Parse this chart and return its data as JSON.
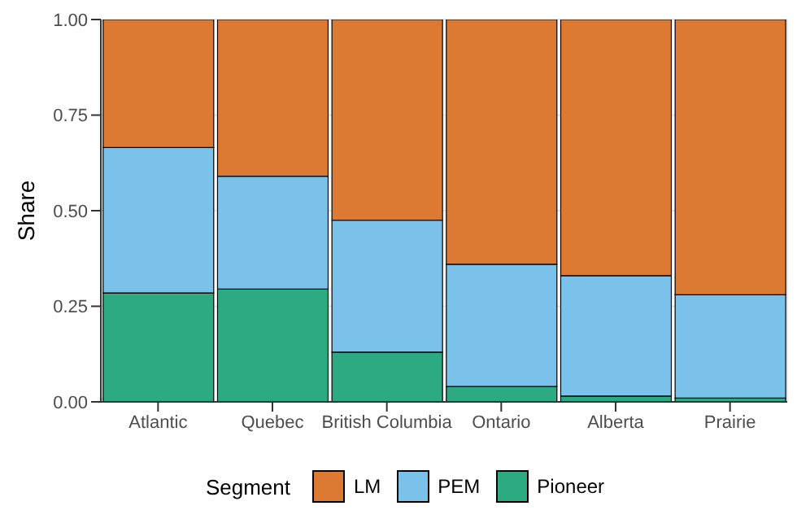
{
  "chart_data": {
    "type": "bar",
    "stacked": true,
    "ylabel": "Share",
    "legend_title": "Segment",
    "legend": "bottom",
    "grid": true,
    "categories": [
      "Atlantic",
      "Quebec",
      "British Columbia",
      "Ontario",
      "Alberta",
      "Prairie"
    ],
    "ylim": [
      0,
      1
    ],
    "yticks": [
      {
        "value": 0,
        "label": "0.00"
      },
      {
        "value": 0.25,
        "label": "0.25"
      },
      {
        "value": 0.5,
        "label": "0.50"
      },
      {
        "value": 0.75,
        "label": "0.75"
      },
      {
        "value": 1,
        "label": "1.00"
      }
    ],
    "series": [
      {
        "name": "Pioneer",
        "color": "#2eaa82",
        "values": [
          0.285,
          0.295,
          0.13,
          0.04,
          0.015,
          0.01
        ]
      },
      {
        "name": "PEM",
        "color": "#7ac2ea",
        "values": [
          0.38,
          0.295,
          0.345,
          0.32,
          0.315,
          0.27
        ]
      },
      {
        "name": "LM",
        "color": "#dc7a33",
        "values": [
          0.335,
          0.41,
          0.525,
          0.64,
          0.67,
          0.72
        ]
      }
    ]
  }
}
